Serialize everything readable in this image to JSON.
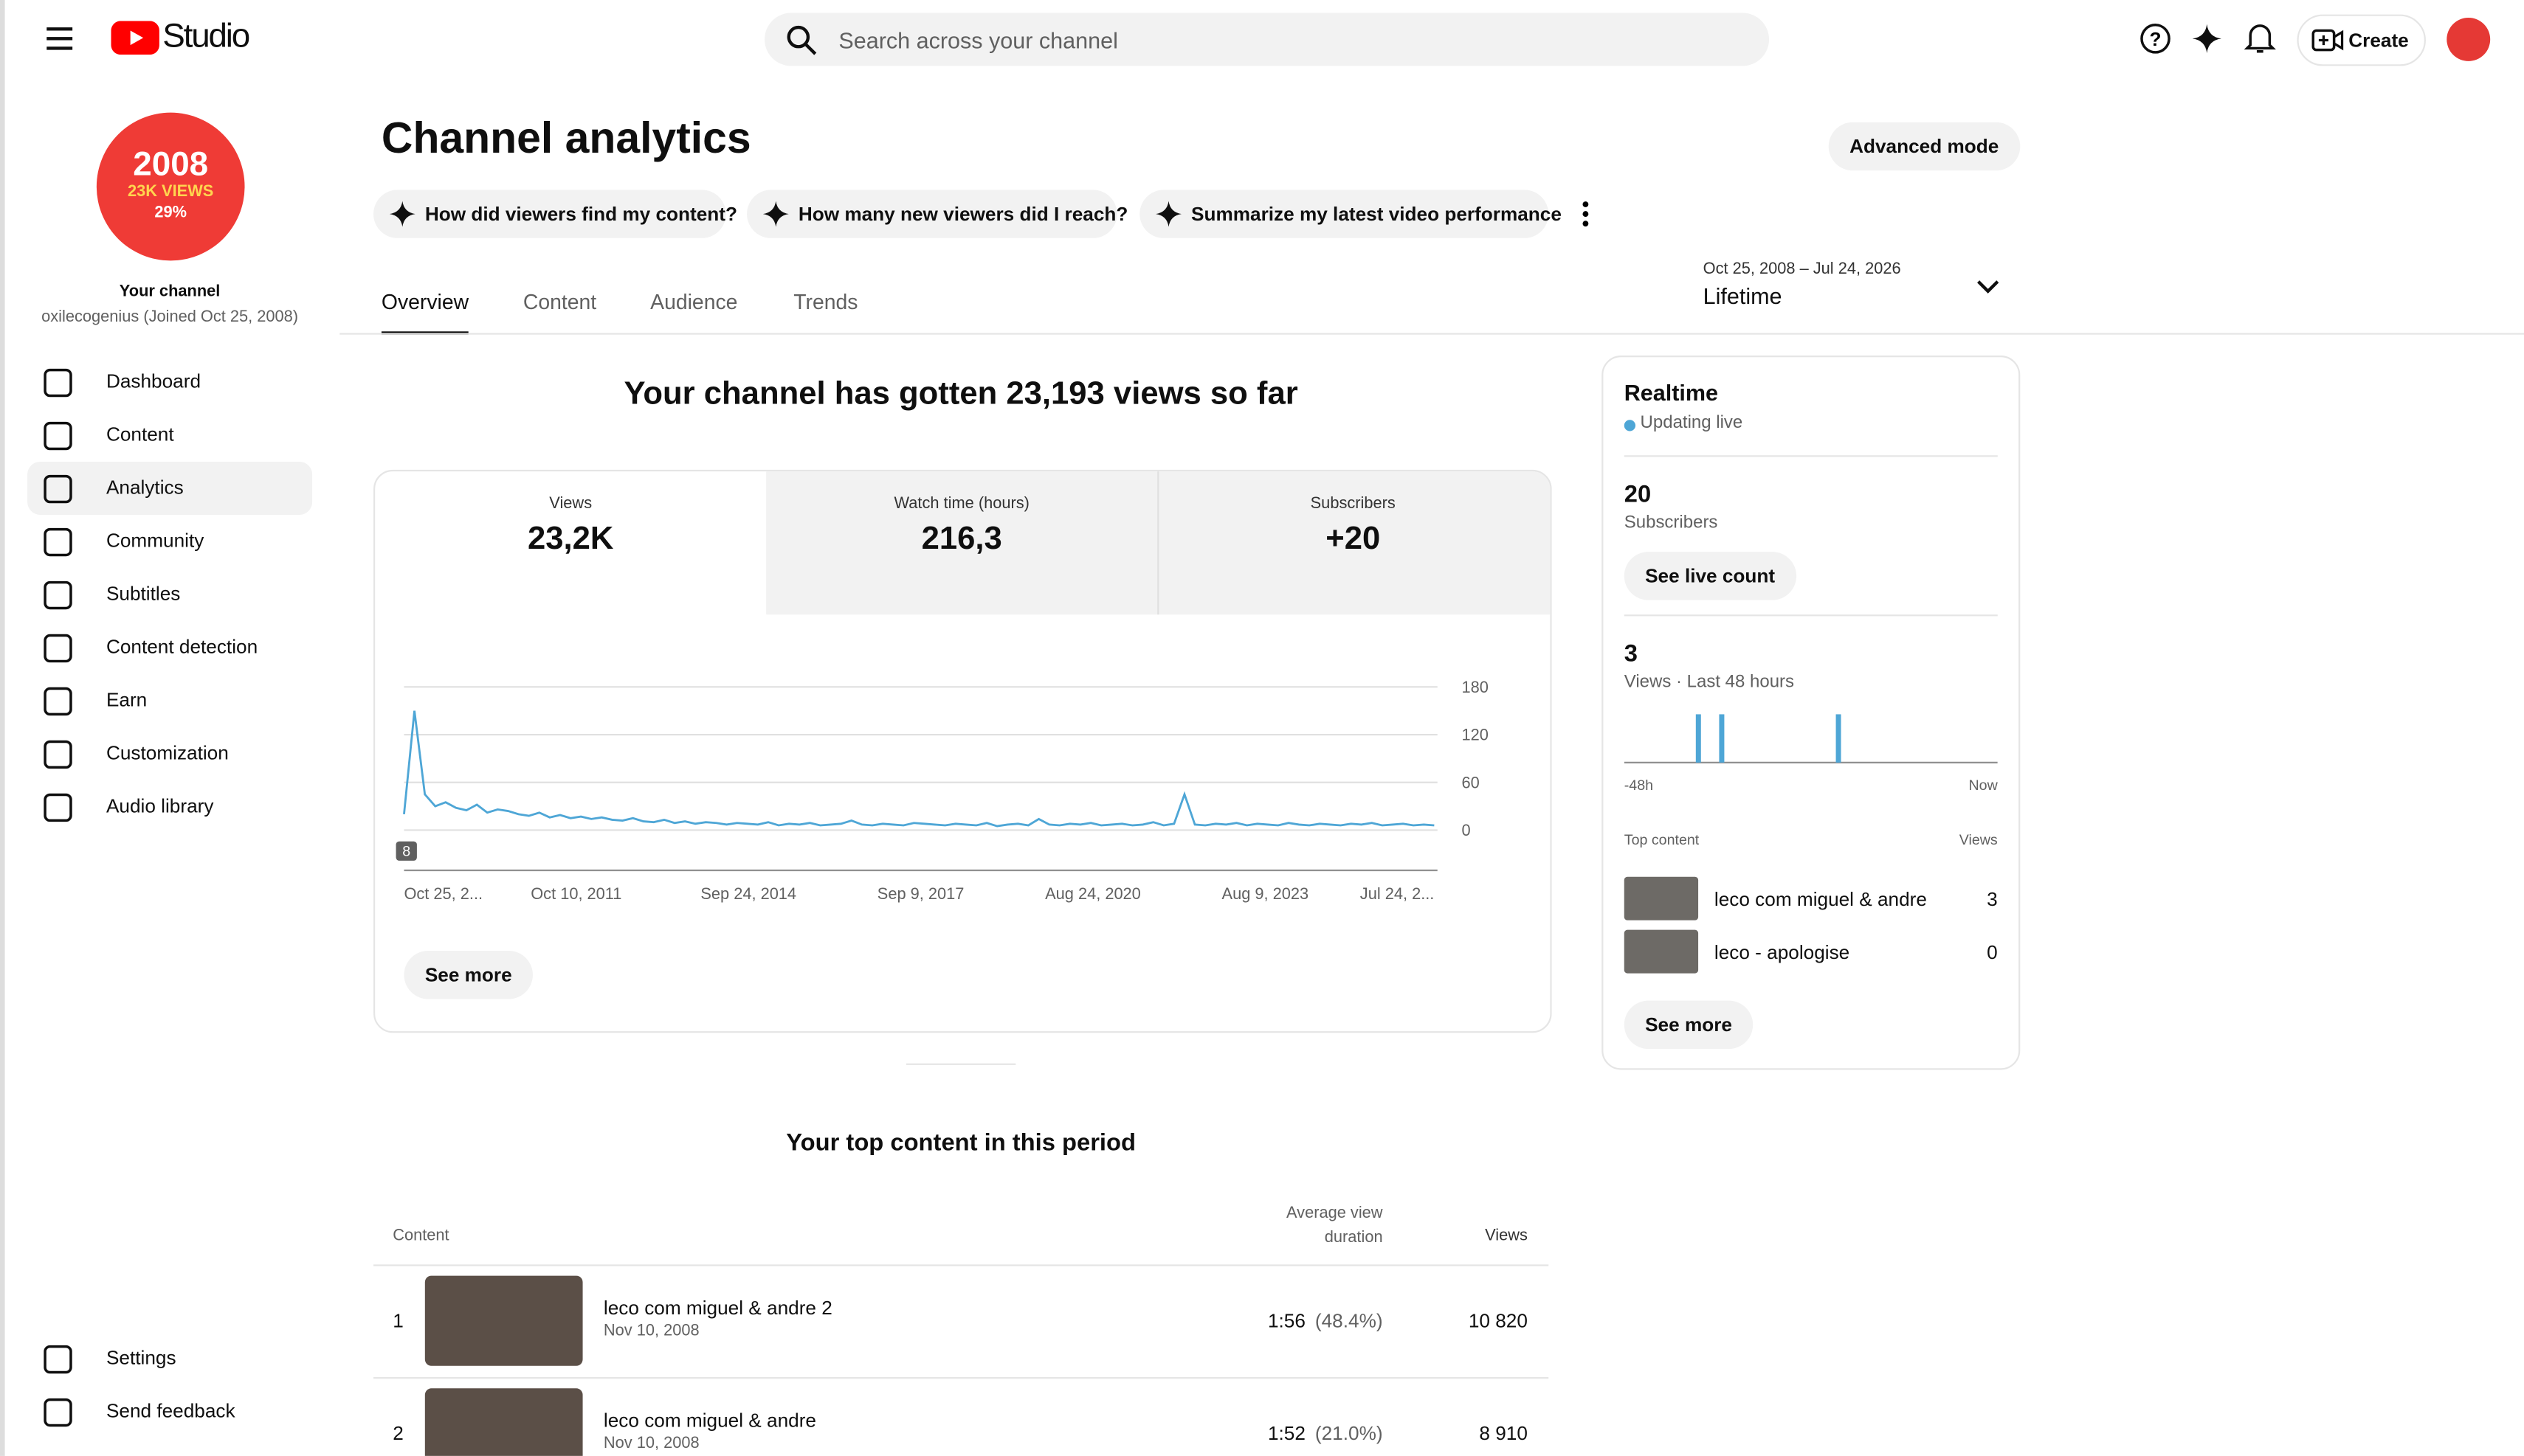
{
  "header": {
    "brand": "Studio",
    "search_placeholder": "Search across your channel",
    "create": "Create"
  },
  "sidebar": {
    "avatar_lines": [
      "2008",
      "23K VIEWS",
      "29%"
    ],
    "channel_label": "Your channel",
    "channel_sub": "oxilecogenius (Joined Oct 25, 2008)",
    "nav": [
      "Dashboard",
      "Content",
      "Analytics",
      "Community",
      "Subtitles",
      "Content detection",
      "Earn",
      "Customization",
      "Audio library"
    ],
    "bottom": [
      "Settings",
      "Send feedback"
    ]
  },
  "page": {
    "title": "Channel analytics",
    "advanced": "Advanced mode",
    "prompts": [
      "How did viewers find my content?",
      "How many new viewers did I reach?",
      "Summarize my latest video performance"
    ],
    "tabs": [
      "Overview",
      "Content",
      "Audience",
      "Trends"
    ],
    "date_range": "Oct 25, 2008 – Jul 24, 2026",
    "period": "Lifetime"
  },
  "summary": {
    "headline": "Your channel has gotten 23,193 views so far",
    "metrics": [
      {
        "label": "Views",
        "value": "23,2K"
      },
      {
        "label": "Watch time (hours)",
        "value": "216,3"
      },
      {
        "label": "Subscribers",
        "value": "+20"
      }
    ],
    "see_more": "See more"
  },
  "chart_data": [
    {
      "type": "line",
      "color": "#4ea6d6",
      "marker": "8",
      "xticks": [
        "Oct 25, 2...",
        "Oct 10, 2011",
        "Sep 24, 2014",
        "Sep 9, 2017",
        "Aug 24, 2020",
        "Aug 9, 2023",
        "Jul 24, 2..."
      ],
      "ylim": [
        0,
        180
      ],
      "yticks": [
        0,
        60,
        120,
        180
      ],
      "grid": true,
      "values": [
        20,
        150,
        45,
        30,
        35,
        28,
        25,
        32,
        22,
        26,
        24,
        20,
        18,
        22,
        16,
        19,
        15,
        17,
        14,
        16,
        13,
        12,
        15,
        11,
        10,
        13,
        9,
        11,
        8,
        10,
        9,
        7,
        9,
        8,
        7,
        10,
        6,
        8,
        7,
        9,
        6,
        7,
        8,
        12,
        7,
        6,
        8,
        7,
        6,
        9,
        8,
        7,
        6,
        8,
        7,
        6,
        9,
        5,
        7,
        8,
        6,
        14,
        7,
        6,
        8,
        7,
        9,
        6,
        7,
        8,
        6,
        7,
        10,
        6,
        8,
        45,
        7,
        6,
        8,
        7,
        9,
        6,
        8,
        7,
        6,
        9,
        7,
        6,
        8,
        7,
        6,
        8,
        7,
        9,
        6,
        7,
        8,
        6,
        7,
        6
      ]
    },
    {
      "type": "bar",
      "color": "#4ea6d6",
      "x_labels": [
        "-48h",
        "Now"
      ],
      "ylim": [
        0,
        1
      ],
      "values": [
        0,
        0,
        0,
        0,
        0,
        0,
        0,
        0,
        0,
        1,
        0,
        0,
        1,
        0,
        0,
        0,
        0,
        0,
        0,
        0,
        0,
        0,
        0,
        0,
        0,
        0,
        0,
        1,
        0,
        0,
        0,
        0,
        0,
        0,
        0,
        0,
        0,
        0,
        0,
        0,
        0,
        0,
        0,
        0,
        0,
        0,
        0,
        0
      ]
    }
  ],
  "realtime": {
    "title": "Realtime",
    "status": "Updating live",
    "subs": "20",
    "subs_label": "Subscribers",
    "live_btn": "See live count",
    "views": "3",
    "views_label": "Views · Last 48 hours",
    "top_label": "Top content",
    "views_col": "Views",
    "items": [
      {
        "title": "leco com miguel & andre",
        "views": "3"
      },
      {
        "title": "leco - apologise",
        "views": "0"
      }
    ],
    "see_more": "See more"
  },
  "top_content": {
    "title": "Your top content in this period",
    "cols": [
      "Content",
      "Average view duration",
      "Views"
    ],
    "rows": [
      {
        "rank": "1",
        "title": "leco com miguel & andre 2",
        "date": "Nov 10, 2008",
        "duration": "1:56",
        "pct": "(48.4%)",
        "views": "10 820"
      },
      {
        "rank": "2",
        "title": "leco com miguel & andre",
        "date": "Nov 10, 2008",
        "duration": "1:52",
        "pct": "(21.0%)",
        "views": "8 910"
      }
    ]
  }
}
